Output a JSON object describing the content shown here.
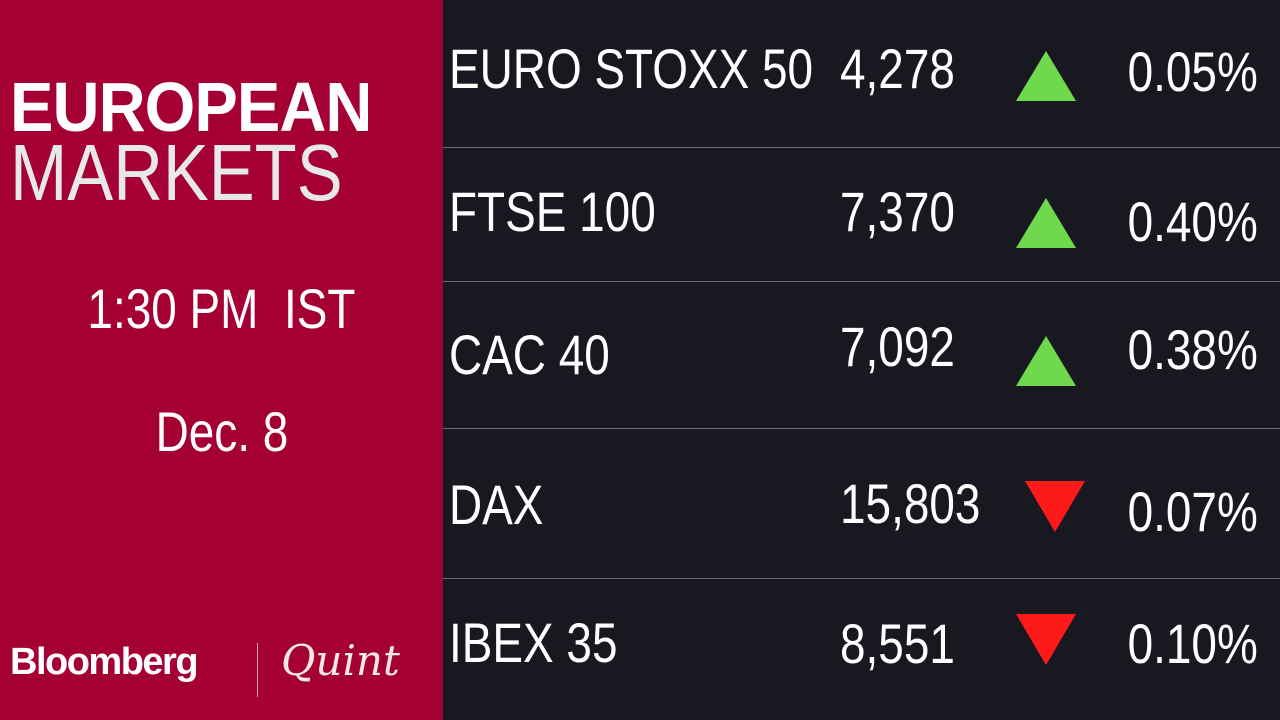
{
  "panel": {
    "title_line1": "EUROPEAN",
    "title_line2": "MARKETS",
    "time": "1:30 PM  IST",
    "date": "Dec. 8",
    "brand_left": "Bloomberg",
    "brand_right": "Quint",
    "background_color": "#a50034"
  },
  "colors": {
    "up": "#6fd84d",
    "down": "#ff1a1a",
    "background": "#181820"
  },
  "indices": [
    {
      "name": "EURO STOXX 50",
      "value": "4,278",
      "direction": "up",
      "change": "0.05%"
    },
    {
      "name": "FTSE 100",
      "value": "7,370",
      "direction": "up",
      "change": "0.40%"
    },
    {
      "name": "CAC 40",
      "value": "7,092",
      "direction": "up",
      "change": "0.38%"
    },
    {
      "name": "DAX",
      "value": "15,803",
      "direction": "down",
      "change": "0.07%"
    },
    {
      "name": "IBEX 35",
      "value": "8,551",
      "direction": "down",
      "change": "0.10%"
    }
  ]
}
